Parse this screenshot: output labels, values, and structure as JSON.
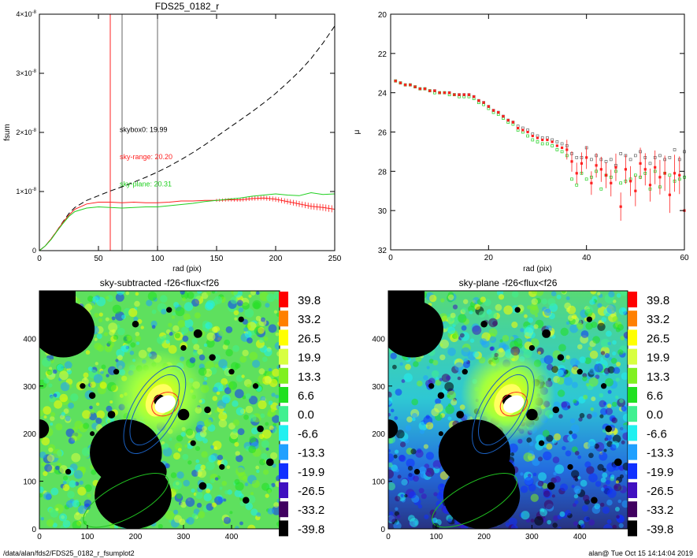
{
  "footer": {
    "left": "/data/alan/fds2/FDS25_0182_r_fsumplot2",
    "right": "alan@  Tue Oct 15 14:14:04 2019"
  },
  "colors": {
    "red": "#ff2020",
    "green": "#20d020",
    "black": "#000000",
    "grey": "#666666",
    "blue": "#1a5fbf"
  },
  "chart_data": [
    {
      "type": "line",
      "title": "FDS25_0182_r",
      "xlabel": "rad (pix)",
      "ylabel": "fsum",
      "xlim": [
        0,
        250
      ],
      "ylim": [
        0,
        4e-08
      ],
      "x_ticks": [
        0,
        50,
        100,
        150,
        200,
        250
      ],
      "y_ticks": [
        {
          "value": 0,
          "mant": "0",
          "exp": ""
        },
        {
          "value": 1e-08,
          "mant": "1×10",
          "exp": "-8"
        },
        {
          "value": 2e-08,
          "mant": "2×10",
          "exp": "-8"
        },
        {
          "value": 3e-08,
          "mant": "3×10",
          "exp": "-8"
        },
        {
          "value": 4e-08,
          "mant": "4×10",
          "exp": "-8"
        }
      ],
      "vlines": [
        {
          "x": 60,
          "color": "red"
        },
        {
          "x": 70,
          "color": "grey"
        },
        {
          "x": 100,
          "color": "grey"
        }
      ],
      "annotations": [
        {
          "text": "skybox0: 19.99",
          "color": "black",
          "x": 68,
          "y": 2.01e-08
        },
        {
          "text": "sky-range: 20.20",
          "color": "red",
          "x": 68,
          "y": 1.55e-08
        },
        {
          "text": "sky-plane: 20.31",
          "color": "green",
          "x": 68,
          "y": 1.09e-08
        }
      ],
      "series": [
        {
          "color": "black",
          "style": "dashed",
          "x": [
            0,
            5,
            10,
            15,
            20,
            25,
            30,
            40,
            50,
            60,
            70,
            80,
            90,
            100,
            110,
            120,
            130,
            140,
            150,
            160,
            170,
            180,
            190,
            200,
            210,
            220,
            230,
            240,
            250
          ],
          "y": [
            0,
            8e-10,
            2e-09,
            3.4e-09,
            4.9e-09,
            6.3e-09,
            7.3e-09,
            8.5e-09,
            9.3e-09,
            1.01e-08,
            1.08e-08,
            1.16e-08,
            1.24e-08,
            1.33e-08,
            1.43e-08,
            1.54e-08,
            1.66e-08,
            1.79e-08,
            1.93e-08,
            2.07e-08,
            2.21e-08,
            2.35e-08,
            2.5e-08,
            2.66e-08,
            2.84e-08,
            3.03e-08,
            3.25e-08,
            3.51e-08,
            3.8e-08
          ]
        },
        {
          "color": "red",
          "style": "solid",
          "errorbars": true,
          "x": [
            0,
            5,
            10,
            15,
            20,
            25,
            30,
            40,
            50,
            60,
            70,
            80,
            90,
            100,
            110,
            120,
            130,
            140,
            150,
            160,
            170,
            180,
            190,
            200,
            210,
            220,
            230,
            240,
            250
          ],
          "y": [
            0,
            8e-10,
            2e-09,
            3.4e-09,
            4.8e-09,
            6e-09,
            7e-09,
            7.9e-09,
            8.2e-09,
            8.2e-09,
            8.1e-09,
            8.2e-09,
            8.1e-09,
            8.1e-09,
            8.2e-09,
            8.4e-09,
            8.4e-09,
            8.5e-09,
            8.5e-09,
            8.6e-09,
            8.6e-09,
            8.8e-09,
            8.9e-09,
            8.7e-09,
            8.3e-09,
            7.9e-09,
            7.5e-09,
            7.3e-09,
            7e-09
          ]
        },
        {
          "color": "green",
          "style": "solid",
          "x": [
            0,
            5,
            10,
            15,
            20,
            25,
            30,
            40,
            50,
            60,
            70,
            80,
            90,
            100,
            110,
            120,
            130,
            140,
            150,
            160,
            170,
            180,
            190,
            200,
            210,
            220,
            230,
            240,
            250
          ],
          "y": [
            0,
            8e-10,
            1.9e-09,
            3.3e-09,
            4.6e-09,
            5.8e-09,
            6.6e-09,
            7.2e-09,
            7.4e-09,
            7.3e-09,
            7.2e-09,
            7.3e-09,
            7.4e-09,
            7.4e-09,
            7.6e-09,
            7.8e-09,
            8e-09,
            8.3e-09,
            8.5e-09,
            8.7e-09,
            8.9e-09,
            9.2e-09,
            9.4e-09,
            9.6e-09,
            9.4e-09,
            9.3e-09,
            9.8e-09,
            9.5e-09,
            9.6e-09
          ]
        }
      ]
    },
    {
      "type": "scatter",
      "title": "",
      "xlabel": "rad (pix)",
      "ylabel": "μ",
      "xlim": [
        0,
        60
      ],
      "ylim": [
        32,
        20
      ],
      "x_ticks": [
        0,
        20,
        40,
        60
      ],
      "y_ticks": [
        20,
        22,
        24,
        26,
        28,
        30,
        32
      ],
      "series": [
        {
          "color": "grey",
          "marker": "square-open",
          "x": [
            1,
            2,
            3,
            4,
            5,
            6,
            7,
            8,
            9,
            10,
            11,
            12,
            13,
            14,
            15,
            16,
            17,
            18,
            19,
            20,
            21,
            22,
            23,
            24,
            25,
            26,
            27,
            28,
            29,
            30,
            31,
            32,
            33,
            34,
            35,
            36,
            37,
            38,
            39,
            40,
            41,
            42,
            43,
            44,
            45,
            46,
            47,
            48,
            49,
            50,
            51,
            52,
            53,
            54,
            55,
            56,
            57,
            58,
            59,
            60
          ],
          "y": [
            23.4,
            23.5,
            23.6,
            23.6,
            23.7,
            23.8,
            23.8,
            23.9,
            23.9,
            24.0,
            24.0,
            24.0,
            24.1,
            24.1,
            24.1,
            24.1,
            24.2,
            24.4,
            24.5,
            24.7,
            24.9,
            25.0,
            25.2,
            25.4,
            25.5,
            25.7,
            25.8,
            25.9,
            26.1,
            26.2,
            26.3,
            26.3,
            26.4,
            26.5,
            26.6,
            26.7,
            27.1,
            27.3,
            27.3,
            26.8,
            27.4,
            27.2,
            27.4,
            27.5,
            27.4,
            27.7,
            27.1,
            27.2,
            27.4,
            27.2,
            27.0,
            27.3,
            27.6,
            27.3,
            27.2,
            27.4,
            27.3,
            26.9,
            27.4,
            27.0
          ]
        },
        {
          "color": "green",
          "marker": "square-open",
          "x": [
            1,
            2,
            3,
            4,
            5,
            6,
            7,
            8,
            9,
            10,
            11,
            12,
            13,
            14,
            15,
            16,
            17,
            18,
            19,
            20,
            21,
            22,
            23,
            24,
            25,
            26,
            27,
            28,
            29,
            30,
            31,
            32,
            33,
            34,
            35,
            36,
            37,
            38,
            39,
            40,
            41,
            42,
            43,
            44,
            45,
            46,
            47,
            48,
            49,
            50,
            51,
            52,
            53,
            54,
            55,
            56,
            57,
            58,
            59,
            60
          ],
          "y": [
            23.4,
            23.5,
            23.6,
            23.6,
            23.7,
            23.8,
            23.8,
            23.9,
            24.0,
            24.0,
            24.0,
            24.1,
            24.1,
            24.2,
            24.2,
            24.2,
            24.3,
            24.5,
            24.6,
            24.8,
            25.0,
            25.1,
            25.3,
            25.5,
            25.6,
            25.9,
            26.0,
            26.2,
            26.4,
            26.5,
            26.6,
            26.6,
            26.7,
            26.9,
            27.0,
            27.2,
            28.4,
            28.7,
            28.1,
            28.4,
            28.3,
            28.0,
            28.9,
            28.2,
            28.3,
            28.0,
            28.6,
            28.5,
            28.4,
            28.2,
            28.3,
            28.1,
            28.9,
            28.0,
            28.8,
            28.1,
            28.2,
            28.5,
            28.4,
            28.3
          ]
        },
        {
          "color": "red",
          "marker": "square-filled",
          "errorbars": true,
          "x": [
            1,
            2,
            3,
            4,
            5,
            6,
            7,
            8,
            9,
            10,
            11,
            12,
            13,
            14,
            15,
            16,
            17,
            18,
            19,
            20,
            21,
            22,
            23,
            24,
            25,
            26,
            27,
            28,
            29,
            30,
            31,
            32,
            33,
            34,
            35,
            36,
            37,
            38,
            39,
            40,
            41,
            42,
            43,
            44,
            45,
            46,
            47,
            48,
            49,
            50,
            51,
            52,
            53,
            54,
            55,
            56,
            57,
            58,
            59,
            60
          ],
          "y": [
            23.4,
            23.5,
            23.6,
            23.6,
            23.7,
            23.8,
            23.8,
            23.9,
            23.9,
            24.0,
            24.0,
            24.0,
            24.1,
            24.1,
            24.1,
            24.1,
            24.2,
            24.4,
            24.5,
            24.7,
            24.9,
            25.0,
            25.2,
            25.4,
            25.5,
            25.8,
            25.9,
            26.0,
            26.2,
            26.3,
            26.4,
            26.4,
            26.5,
            26.7,
            26.8,
            26.9,
            27.5,
            28.1,
            27.6,
            27.3,
            28.6,
            27.7,
            27.9,
            28.2,
            28.6,
            27.8,
            29.8,
            27.9,
            28.5,
            29.0,
            27.6,
            27.9,
            28.7,
            27.8,
            28.3,
            28.1,
            29.2,
            28.1,
            28.2,
            30.0
          ]
        }
      ]
    },
    {
      "type": "heatmap",
      "title": "sky-subtracted -f26<flux<f26",
      "xlim": [
        0,
        500
      ],
      "ylim": [
        0,
        500
      ],
      "x_ticks": [
        0,
        100,
        200,
        300,
        400
      ],
      "y_ticks": [
        0,
        100,
        200,
        300,
        400
      ],
      "background": "sky-subtracted",
      "colorbar": [
        {
          "label": "39.8",
          "color": "#ff0000"
        },
        {
          "label": "33.2",
          "color": "#ff8000"
        },
        {
          "label": "26.5",
          "color": "#ffff00"
        },
        {
          "label": "19.9",
          "color": "#d8ff40"
        },
        {
          "label": "13.3",
          "color": "#80f020"
        },
        {
          "label": "6.6",
          "color": "#20e020"
        },
        {
          "label": "0.0",
          "color": "#40f090"
        },
        {
          "label": "-6.6",
          "color": "#20f0f0"
        },
        {
          "label": "-13.3",
          "color": "#20a0ff"
        },
        {
          "label": "-19.9",
          "color": "#1030ff"
        },
        {
          "label": "-26.5",
          "color": "#4010c0"
        },
        {
          "label": "-33.2",
          "color": "#400060"
        },
        {
          "label": "-39.8",
          "color": "#000000"
        }
      ]
    },
    {
      "type": "heatmap",
      "title": "sky-plane -f26<flux<f26",
      "xlim": [
        0,
        500
      ],
      "ylim": [
        0,
        500
      ],
      "x_ticks": [
        0,
        100,
        200,
        300,
        400
      ],
      "y_ticks": [
        0,
        100,
        200,
        300,
        400
      ],
      "background": "sky-plane",
      "colorbar": [
        {
          "label": "39.8",
          "color": "#ff0000"
        },
        {
          "label": "33.2",
          "color": "#ff8000"
        },
        {
          "label": "26.5",
          "color": "#ffff00"
        },
        {
          "label": "19.9",
          "color": "#d8ff40"
        },
        {
          "label": "13.3",
          "color": "#80f020"
        },
        {
          "label": "6.6",
          "color": "#20e020"
        },
        {
          "label": "0.0",
          "color": "#40f090"
        },
        {
          "label": "-6.6",
          "color": "#20f0f0"
        },
        {
          "label": "-13.3",
          "color": "#20a0ff"
        },
        {
          "label": "-19.9",
          "color": "#1030ff"
        },
        {
          "label": "-26.5",
          "color": "#4010c0"
        },
        {
          "label": "-33.2",
          "color": "#400060"
        },
        {
          "label": "-39.8",
          "color": "#000000"
        }
      ]
    }
  ]
}
